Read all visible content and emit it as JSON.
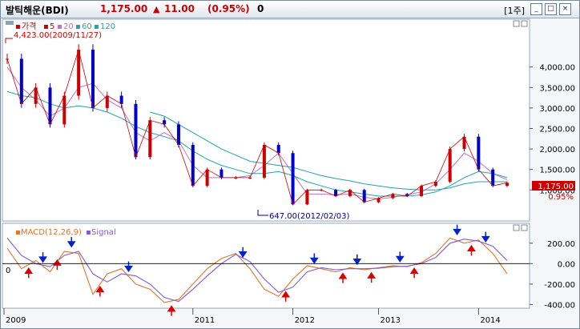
{
  "header": {
    "name": "발틱해운(BDI)",
    "price": "1,175.00",
    "arrow": "▲",
    "change": "11.00",
    "change_pct": "(0.95%)",
    "volume": "0",
    "period": "[1주]",
    "btn_min": "_",
    "btn_max": "□",
    "btn_close": "×"
  },
  "legend_main": {
    "items": [
      {
        "text": "가격",
        "color": "#cc0000"
      },
      {
        "text": "5",
        "color": "#cc0000"
      },
      {
        "text": "20",
        "color": "#c86ec8"
      },
      {
        "text": "60",
        "color": "#21a5a5"
      },
      {
        "text": "120",
        "color": "#21a5a5"
      }
    ]
  },
  "legend_macd": {
    "items": [
      {
        "text": "MACD(12,26,9)",
        "color": "#e0752a"
      },
      {
        "text": "Signal",
        "color": "#7c5cd6"
      }
    ]
  },
  "annotations": {
    "high": "4,423.00(2009/11/27)",
    "low": "647.00(2012/02/03)"
  },
  "current": {
    "price_box": "1,175.00",
    "pct": "0.95%"
  },
  "chart_data": [
    {
      "type": "candlestick",
      "title": "발틱해운(BDI)",
      "x": [
        "2009-01",
        "2009-04",
        "2009-06",
        "2009-08",
        "2009-10",
        "2009-11",
        "2010-01",
        "2010-03",
        "2010-05",
        "2010-06",
        "2010-08",
        "2010-10",
        "2010-12",
        "2011-02",
        "2011-03",
        "2011-05",
        "2011-07",
        "2011-09",
        "2011-10",
        "2011-12",
        "2012-02",
        "2012-04",
        "2012-06",
        "2012-08",
        "2012-10",
        "2012-12",
        "2013-02",
        "2013-04",
        "2013-06",
        "2013-08",
        "2013-09",
        "2013-10",
        "2013-12",
        "2014-01",
        "2014-02",
        "2014-03"
      ],
      "close": [
        4200,
        3100,
        3500,
        2600,
        3300,
        4423,
        3000,
        3300,
        3100,
        1800,
        2700,
        2600,
        2100,
        1100,
        1500,
        1300,
        1300,
        1300,
        2100,
        1900,
        647,
        1000,
        1000,
        850,
        1000,
        700,
        800,
        900,
        850,
        1100,
        1200,
        2000,
        2300,
        1500,
        1100,
        1175
      ],
      "ma": [
        {
          "name": "20",
          "values": [
            4000,
            3500,
            3200,
            2800,
            3000,
            3500,
            3600,
            3200,
            3000,
            2400,
            2200,
            2400,
            2200,
            1600,
            1300,
            1300,
            1300,
            1350,
            1600,
            1900,
            1400,
            900,
            900,
            880,
            900,
            820,
            780,
            820,
            880,
            950,
            1150,
            1500,
            1900,
            1700,
            1400,
            1250
          ]
        },
        {
          "name": "60",
          "values": [
            3400,
            3300,
            3250,
            3100,
            3000,
            3050,
            3000,
            2900,
            2750,
            2550,
            2400,
            2300,
            2200,
            1950,
            1750,
            1600,
            1500,
            1400,
            1400,
            1450,
            1350,
            1200,
            1100,
            1000,
            950,
            900,
            850,
            850,
            850,
            880,
            950,
            1100,
            1300,
            1450,
            1400,
            1300
          ]
        },
        {
          "name": "120",
          "values": [
            null,
            null,
            null,
            null,
            null,
            null,
            null,
            null,
            null,
            null,
            2900,
            2800,
            2600,
            2400,
            2200,
            2000,
            1850,
            1700,
            1650,
            1600,
            1550,
            1450,
            1350,
            1280,
            1220,
            1150,
            1100,
            1050,
            1020,
            1000,
            1000,
            1050,
            1150,
            1200,
            1200,
            1200
          ]
        }
      ],
      "ylim": [
        400,
        4600
      ],
      "yticks": [
        "4,000.00",
        "3,500.00",
        "3,000.00",
        "2,500.00",
        "2,000.00",
        "1,500.00",
        "1,000.00"
      ],
      "xticks": [
        "2009",
        "2011",
        "2012",
        "2013",
        "2014"
      ]
    },
    {
      "type": "line",
      "title": "MACD(12,26,9)",
      "x": [
        "2009-01",
        "2009-04",
        "2009-06",
        "2009-08",
        "2009-10",
        "2009-11",
        "2010-01",
        "2010-03",
        "2010-05",
        "2010-06",
        "2010-08",
        "2010-10",
        "2010-12",
        "2011-02",
        "2011-03",
        "2011-05",
        "2011-07",
        "2011-09",
        "2011-10",
        "2011-12",
        "2012-02",
        "2012-04",
        "2012-06",
        "2012-08",
        "2012-10",
        "2012-12",
        "2013-02",
        "2013-04",
        "2013-06",
        "2013-08",
        "2013-09",
        "2013-10",
        "2013-12",
        "2014-01",
        "2014-02",
        "2014-03"
      ],
      "series": [
        {
          "name": "MACD(12,26,9)",
          "values": [
            150,
            -50,
            30,
            -80,
            120,
            100,
            -300,
            -100,
            -50,
            -200,
            -250,
            -380,
            -350,
            -200,
            -50,
            50,
            100,
            -50,
            -250,
            -320,
            -150,
            -20,
            -50,
            -80,
            -40,
            -60,
            -40,
            -20,
            -30,
            10,
            100,
            250,
            200,
            230,
            100,
            -100
          ]
        },
        {
          "name": "Signal",
          "values": [
            250,
            80,
            0,
            -30,
            80,
            120,
            -100,
            -180,
            -100,
            -120,
            -200,
            -330,
            -370,
            -250,
            -120,
            0,
            90,
            20,
            -150,
            -280,
            -230,
            -80,
            -40,
            -60,
            -50,
            -50,
            -45,
            -30,
            -25,
            0,
            60,
            200,
            240,
            220,
            170,
            30
          ]
        }
      ],
      "ylim": [
        -420,
        300
      ],
      "yticks": [
        "200.00",
        "0.00",
        "-200.00",
        "-400.00"
      ],
      "zero_label": "0"
    }
  ]
}
